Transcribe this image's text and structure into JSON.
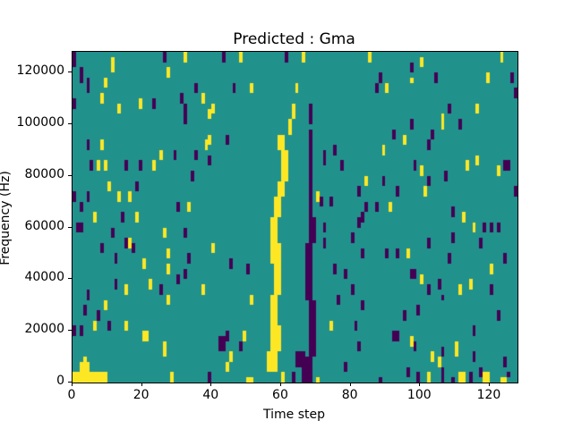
{
  "figure": {
    "background": "#ffffff",
    "axes_color": "#000000"
  },
  "chart_data": {
    "type": "heatmap",
    "title": "Predicted : Gma",
    "xlabel": "Time step",
    "ylabel": "Frequency (Hz)",
    "xlim": [
      0,
      128
    ],
    "ylim": [
      0,
      128000
    ],
    "x_ticks": [
      0,
      20,
      40,
      60,
      80,
      100,
      120
    ],
    "y_ticks": [
      0,
      20000,
      40000,
      60000,
      80000,
      100000,
      120000
    ],
    "grid": {
      "cols": 128,
      "rows": 64
    },
    "legend_position": "none",
    "grid_lines": false,
    "colors": {
      "bg": "#21918c",
      "y": "#fde725",
      "p": "#440154"
    },
    "color_meaning": {
      "bg": "mid-class",
      "y": "high-class",
      "p": "low-class"
    },
    "cells": [
      [
        0,
        0,
        "y",
        10,
        2
      ],
      [
        2,
        2,
        "y",
        3,
        2
      ],
      [
        3,
        4,
        "y",
        1,
        1
      ],
      [
        56,
        2,
        "y",
        3,
        4
      ],
      [
        57,
        6,
        "y",
        3,
        5
      ],
      [
        57,
        11,
        "y",
        2,
        6
      ],
      [
        58,
        17,
        "y",
        2,
        6
      ],
      [
        57,
        23,
        "y",
        3,
        4
      ],
      [
        57,
        27,
        "y",
        2,
        5
      ],
      [
        58,
        32,
        "y",
        2,
        4
      ],
      [
        59,
        36,
        "y",
        2,
        3
      ],
      [
        60,
        39,
        "y",
        2,
        3
      ],
      [
        60,
        42,
        "y",
        2,
        3
      ],
      [
        59,
        45,
        "y",
        2,
        3
      ],
      [
        62,
        48,
        "y",
        1,
        3
      ],
      [
        63,
        51,
        "y",
        1,
        3
      ],
      [
        64,
        56,
        "y",
        1,
        2
      ],
      [
        66,
        62,
        "y",
        1,
        2
      ],
      [
        60,
        0,
        "y",
        1,
        2
      ],
      [
        66,
        0,
        "p",
        1,
        3
      ],
      [
        67,
        0,
        "p",
        2,
        5
      ],
      [
        64,
        3,
        "p",
        3,
        3
      ],
      [
        68,
        5,
        "p",
        2,
        6
      ],
      [
        68,
        11,
        "p",
        2,
        5
      ],
      [
        67,
        16,
        "p",
        2,
        6
      ],
      [
        67,
        22,
        "p",
        2,
        5
      ],
      [
        68,
        27,
        "p",
        2,
        5
      ],
      [
        68,
        32,
        "p",
        1,
        6
      ],
      [
        68,
        38,
        "p",
        1,
        6
      ],
      [
        68,
        44,
        "p",
        1,
        5
      ],
      [
        68,
        50,
        "p",
        1,
        4
      ],
      [
        71,
        34,
        "p",
        1,
        2
      ],
      [
        63,
        0,
        "p",
        1,
        2
      ],
      [
        61,
        62,
        "p",
        1,
        2
      ],
      [
        70,
        35,
        "y",
        1,
        2
      ],
      [
        70,
        0,
        "y",
        1,
        1
      ],
      [
        0,
        61,
        "p",
        1,
        3
      ],
      [
        2,
        58,
        "p",
        1,
        3
      ],
      [
        4,
        56,
        "p",
        1,
        3
      ],
      [
        11,
        60,
        "y",
        1,
        3
      ],
      [
        9,
        57,
        "y",
        1,
        2
      ],
      [
        26,
        62,
        "p",
        1,
        2
      ],
      [
        27,
        59,
        "y",
        1,
        2
      ],
      [
        0,
        53,
        "p",
        1,
        2
      ],
      [
        8,
        54,
        "y",
        1,
        2
      ],
      [
        13,
        52,
        "y",
        1,
        2
      ],
      [
        19,
        53,
        "y",
        1,
        2
      ],
      [
        23,
        53,
        "p",
        1,
        2
      ],
      [
        32,
        62,
        "y",
        1,
        2
      ],
      [
        43,
        62,
        "p",
        1,
        2
      ],
      [
        48,
        62,
        "y",
        1,
        2
      ],
      [
        35,
        56,
        "p",
        1,
        2
      ],
      [
        46,
        56,
        "p",
        1,
        2
      ],
      [
        51,
        56,
        "y",
        1,
        2
      ],
      [
        31,
        54,
        "p",
        1,
        2
      ],
      [
        37,
        54,
        "y",
        1,
        2
      ],
      [
        32,
        52,
        "p",
        1,
        2
      ],
      [
        40,
        52,
        "y",
        1,
        2
      ],
      [
        32,
        50,
        "p",
        1,
        2
      ],
      [
        39,
        51,
        "y",
        1,
        2
      ],
      [
        39,
        46,
        "y",
        1,
        2
      ],
      [
        44,
        46,
        "p",
        1,
        2
      ],
      [
        4,
        45,
        "p",
        1,
        2
      ],
      [
        8,
        45,
        "y",
        1,
        2
      ],
      [
        38,
        45,
        "y",
        1,
        2
      ],
      [
        25,
        43,
        "y",
        1,
        2
      ],
      [
        29,
        43,
        "p",
        1,
        2
      ],
      [
        35,
        43,
        "p",
        1,
        2
      ],
      [
        39,
        42,
        "p",
        1,
        2
      ],
      [
        5,
        41,
        "p",
        1,
        2
      ],
      [
        7,
        41,
        "y",
        1,
        2
      ],
      [
        9,
        41,
        "y",
        1,
        2
      ],
      [
        15,
        41,
        "p",
        1,
        2
      ],
      [
        19,
        41,
        "p",
        1,
        2
      ],
      [
        23,
        41,
        "y",
        1,
        2
      ],
      [
        34,
        39,
        "p",
        1,
        2
      ],
      [
        10,
        37,
        "y",
        1,
        2
      ],
      [
        18,
        37,
        "p",
        1,
        2
      ],
      [
        4,
        35,
        "p",
        1,
        2
      ],
      [
        0,
        35,
        "p",
        1,
        2
      ],
      [
        13,
        35,
        "y",
        1,
        2
      ],
      [
        16,
        35,
        "y",
        1,
        2
      ],
      [
        2,
        33,
        "p",
        1,
        2
      ],
      [
        33,
        33,
        "y",
        1,
        2
      ],
      [
        30,
        33,
        "p",
        1,
        2
      ],
      [
        6,
        31,
        "y",
        1,
        2
      ],
      [
        14,
        31,
        "p",
        1,
        2
      ],
      [
        18,
        31,
        "y",
        1,
        2
      ],
      [
        1,
        29,
        "p",
        2,
        2
      ],
      [
        11,
        28,
        "p",
        1,
        2
      ],
      [
        26,
        28,
        "y",
        1,
        2
      ],
      [
        32,
        28,
        "p",
        1,
        2
      ],
      [
        8,
        25,
        "p",
        1,
        2
      ],
      [
        16,
        26,
        "y",
        1,
        2
      ],
      [
        17,
        25,
        "p",
        1,
        2
      ],
      [
        40,
        25,
        "y",
        1,
        2
      ],
      [
        15,
        26,
        "p",
        1,
        2
      ],
      [
        27,
        24,
        "y",
        1,
        2
      ],
      [
        33,
        23,
        "p",
        1,
        2
      ],
      [
        12,
        23,
        "p",
        1,
        2
      ],
      [
        20,
        22,
        "y",
        1,
        2
      ],
      [
        27,
        21,
        "y",
        1,
        2
      ],
      [
        32,
        20,
        "p",
        1,
        2
      ],
      [
        45,
        22,
        "p",
        1,
        2
      ],
      [
        50,
        21,
        "p",
        1,
        2
      ],
      [
        12,
        18,
        "p",
        1,
        2
      ],
      [
        15,
        17,
        "y",
        1,
        2
      ],
      [
        22,
        18,
        "y",
        1,
        2
      ],
      [
        25,
        17,
        "p",
        1,
        2
      ],
      [
        27,
        15,
        "y",
        1,
        2
      ],
      [
        30,
        19,
        "p",
        1,
        2
      ],
      [
        37,
        17,
        "y",
        1,
        2
      ],
      [
        4,
        16,
        "p",
        1,
        2
      ],
      [
        9,
        14,
        "y",
        1,
        2
      ],
      [
        3,
        13,
        "p",
        1,
        2
      ],
      [
        7,
        12,
        "p",
        1,
        2
      ],
      [
        51,
        15,
        "y",
        1,
        2
      ],
      [
        6,
        10,
        "y",
        1,
        2
      ],
      [
        10,
        10,
        "p",
        1,
        2
      ],
      [
        15,
        10,
        "y",
        1,
        2
      ],
      [
        2,
        9,
        "p",
        1,
        2
      ],
      [
        20,
        8,
        "y",
        2,
        2
      ],
      [
        26,
        5,
        "y",
        1,
        3
      ],
      [
        42,
        6,
        "p",
        2,
        3
      ],
      [
        44,
        8,
        "p",
        1,
        2
      ],
      [
        49,
        8,
        "y",
        1,
        2
      ],
      [
        48,
        6,
        "p",
        1,
        2
      ],
      [
        45,
        4,
        "y",
        1,
        2
      ],
      [
        44,
        2,
        "y",
        1,
        2
      ],
      [
        28,
        0,
        "y",
        1,
        2
      ],
      [
        39,
        0,
        "p",
        1,
        2
      ],
      [
        0,
        9,
        "p",
        1,
        2
      ],
      [
        50,
        0,
        "y",
        2,
        1
      ],
      [
        123,
        62,
        "y",
        1,
        2
      ],
      [
        97,
        60,
        "p",
        1,
        2
      ],
      [
        100,
        61,
        "y",
        1,
        2
      ],
      [
        88,
        58,
        "p",
        1,
        2
      ],
      [
        97,
        58,
        "y",
        1,
        1
      ],
      [
        104,
        58,
        "p",
        1,
        2
      ],
      [
        119,
        58,
        "y",
        1,
        2
      ],
      [
        126,
        58,
        "p",
        1,
        2
      ],
      [
        87,
        56,
        "p",
        1,
        2
      ],
      [
        90,
        56,
        "y",
        1,
        2
      ],
      [
        127,
        55,
        "p",
        1,
        2
      ],
      [
        108,
        52,
        "p",
        1,
        2
      ],
      [
        116,
        52,
        "y",
        1,
        2
      ],
      [
        106,
        49,
        "y",
        1,
        3
      ],
      [
        111,
        49,
        "p",
        1,
        2
      ],
      [
        97,
        49,
        "p",
        1,
        2
      ],
      [
        92,
        47,
        "p",
        1,
        2
      ],
      [
        95,
        46,
        "y",
        1,
        2
      ],
      [
        103,
        47,
        "p",
        1,
        2
      ],
      [
        89,
        44,
        "y",
        1,
        2
      ],
      [
        102,
        45,
        "p",
        1,
        2
      ],
      [
        75,
        44,
        "p",
        1,
        2
      ],
      [
        72,
        42,
        "p",
        1,
        3
      ],
      [
        77,
        41,
        "p",
        1,
        2
      ],
      [
        116,
        42,
        "y",
        1,
        2
      ],
      [
        124,
        41,
        "p",
        2,
        2
      ],
      [
        122,
        40,
        "y",
        1,
        2
      ],
      [
        98,
        41,
        "p",
        1,
        2
      ],
      [
        100,
        40,
        "y",
        1,
        2
      ],
      [
        113,
        41,
        "y",
        1,
        2
      ],
      [
        107,
        39,
        "p",
        1,
        2
      ],
      [
        84,
        38,
        "y",
        1,
        2
      ],
      [
        89,
        38,
        "p",
        1,
        2
      ],
      [
        102,
        38,
        "p",
        1,
        2
      ],
      [
        82,
        36,
        "p",
        1,
        2
      ],
      [
        93,
        36,
        "p",
        1,
        2
      ],
      [
        101,
        36,
        "y",
        1,
        2
      ],
      [
        74,
        34,
        "p",
        1,
        2
      ],
      [
        84,
        33,
        "p",
        1,
        2
      ],
      [
        87,
        33,
        "p",
        1,
        2
      ],
      [
        91,
        33,
        "y",
        1,
        2
      ],
      [
        127,
        36,
        "p",
        1,
        2
      ],
      [
        109,
        32,
        "p",
        1,
        2
      ],
      [
        112,
        31,
        "y",
        1,
        2
      ],
      [
        83,
        31,
        "p",
        1,
        2
      ],
      [
        82,
        30,
        "p",
        1,
        2
      ],
      [
        72,
        29,
        "p",
        1,
        2
      ],
      [
        115,
        29,
        "y",
        1,
        2
      ],
      [
        118,
        29,
        "p",
        1,
        2
      ],
      [
        120,
        29,
        "p",
        1,
        2
      ],
      [
        122,
        29,
        "p",
        1,
        2
      ],
      [
        72,
        26,
        "p",
        1,
        2
      ],
      [
        80,
        27,
        "p",
        1,
        2
      ],
      [
        102,
        26,
        "p",
        1,
        2
      ],
      [
        109,
        27,
        "p",
        1,
        2
      ],
      [
        117,
        26,
        "p",
        1,
        2
      ],
      [
        83,
        24,
        "p",
        1,
        2
      ],
      [
        90,
        24,
        "p",
        1,
        2
      ],
      [
        93,
        24,
        "p",
        1,
        2
      ],
      [
        96,
        24,
        "y",
        1,
        2
      ],
      [
        108,
        23,
        "p",
        1,
        2
      ],
      [
        124,
        23,
        "p",
        1,
        2
      ],
      [
        75,
        21,
        "p",
        1,
        2
      ],
      [
        78,
        20,
        "p",
        1,
        2
      ],
      [
        120,
        21,
        "y",
        1,
        2
      ],
      [
        97,
        20,
        "p",
        2,
        2
      ],
      [
        100,
        19,
        "y",
        1,
        2
      ],
      [
        80,
        17,
        "p",
        1,
        2
      ],
      [
        102,
        17,
        "p",
        1,
        2
      ],
      [
        105,
        18,
        "p",
        1,
        2
      ],
      [
        111,
        17,
        "y",
        1,
        2
      ],
      [
        114,
        18,
        "y",
        1,
        2
      ],
      [
        106,
        16,
        "p",
        1,
        1
      ],
      [
        120,
        17,
        "p",
        1,
        2
      ],
      [
        76,
        15,
        "p",
        1,
        2
      ],
      [
        83,
        14,
        "p",
        1,
        2
      ],
      [
        99,
        13,
        "p",
        1,
        2
      ],
      [
        95,
        12,
        "p",
        1,
        2
      ],
      [
        122,
        12,
        "p",
        1,
        2
      ],
      [
        74,
        10,
        "y",
        1,
        2
      ],
      [
        81,
        10,
        "p",
        1,
        2
      ],
      [
        115,
        9,
        "p",
        1,
        2
      ],
      [
        92,
        8,
        "p",
        2,
        2
      ],
      [
        97,
        7,
        "y",
        1,
        2
      ],
      [
        98,
        6,
        "p",
        1,
        2
      ],
      [
        82,
        6,
        "p",
        1,
        2
      ],
      [
        110,
        5,
        "y",
        1,
        3
      ],
      [
        106,
        5,
        "p",
        1,
        2
      ],
      [
        103,
        4,
        "y",
        1,
        2
      ],
      [
        105,
        3,
        "y",
        1,
        2
      ],
      [
        115,
        4,
        "p",
        1,
        2
      ],
      [
        78,
        2,
        "p",
        1,
        2
      ],
      [
        96,
        1,
        "p",
        1,
        2
      ],
      [
        99,
        0,
        "p",
        1,
        2
      ],
      [
        102,
        0,
        "y",
        1,
        2
      ],
      [
        106,
        0,
        "p",
        1,
        3
      ],
      [
        109,
        0,
        "p",
        1,
        1
      ],
      [
        111,
        0,
        "y",
        2,
        2
      ],
      [
        114,
        0,
        "p",
        1,
        2
      ],
      [
        117,
        1,
        "p",
        1,
        2
      ],
      [
        118,
        0,
        "y",
        2,
        2
      ],
      [
        123,
        0,
        "y",
        2,
        1
      ],
      [
        125,
        1,
        "p",
        1,
        1
      ],
      [
        124,
        3,
        "p",
        1,
        2
      ],
      [
        88,
        0,
        "p",
        1,
        1
      ],
      [
        85,
        62,
        "y",
        1,
        2
      ]
    ]
  }
}
